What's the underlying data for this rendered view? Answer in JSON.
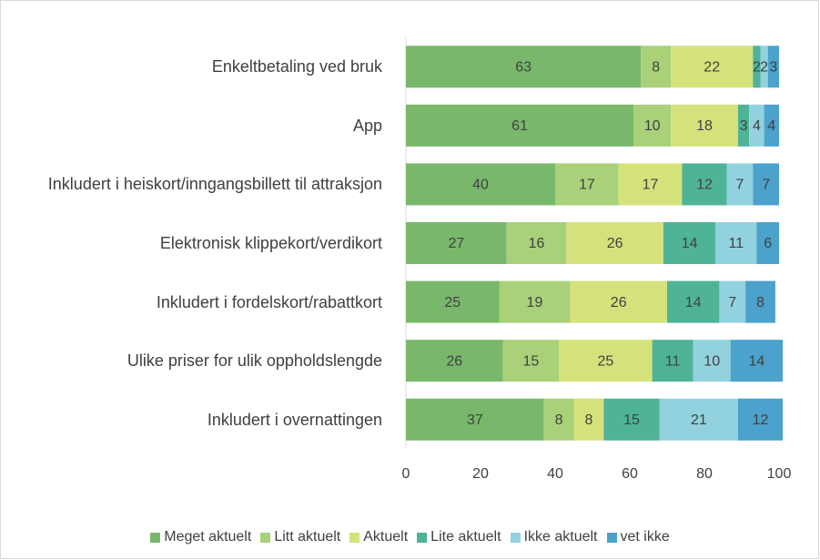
{
  "chart_data": {
    "type": "stacked_bar_horizontal",
    "categories": [
      "Enkeltbetaling ved bruk",
      "App",
      "Inkludert i heiskort/inngangsbillett til attraksjon",
      "Elektronisk klippekort/verdikort",
      "Inkludert i fordelskort/rabattkort",
      "Ulike priser for ulik oppholdslengde",
      "Inkludert i overnattingen"
    ],
    "series": [
      {
        "name": "Meget aktuelt",
        "color": "#79b86b",
        "values": [
          63,
          61,
          40,
          27,
          25,
          26,
          37
        ]
      },
      {
        "name": "Litt aktuelt",
        "color": "#a8d179",
        "values": [
          8,
          10,
          17,
          16,
          19,
          15,
          8
        ]
      },
      {
        "name": "Aktuelt",
        "color": "#d5e27c",
        "values": [
          22,
          18,
          17,
          26,
          26,
          25,
          8
        ]
      },
      {
        "name": "Lite aktuelt",
        "color": "#4fb398",
        "values": [
          2,
          3,
          12,
          14,
          14,
          11,
          15
        ]
      },
      {
        "name": "Ikke aktuelt",
        "color": "#92d2df",
        "values": [
          2,
          4,
          7,
          11,
          7,
          10,
          21
        ]
      },
      {
        "name": "vet ikke",
        "color": "#4ba2cc",
        "values": [
          3,
          4,
          7,
          6,
          8,
          14,
          12
        ]
      }
    ],
    "xlim": [
      0,
      100
    ],
    "xticks": [
      0,
      20,
      40,
      60,
      80,
      100
    ]
  }
}
